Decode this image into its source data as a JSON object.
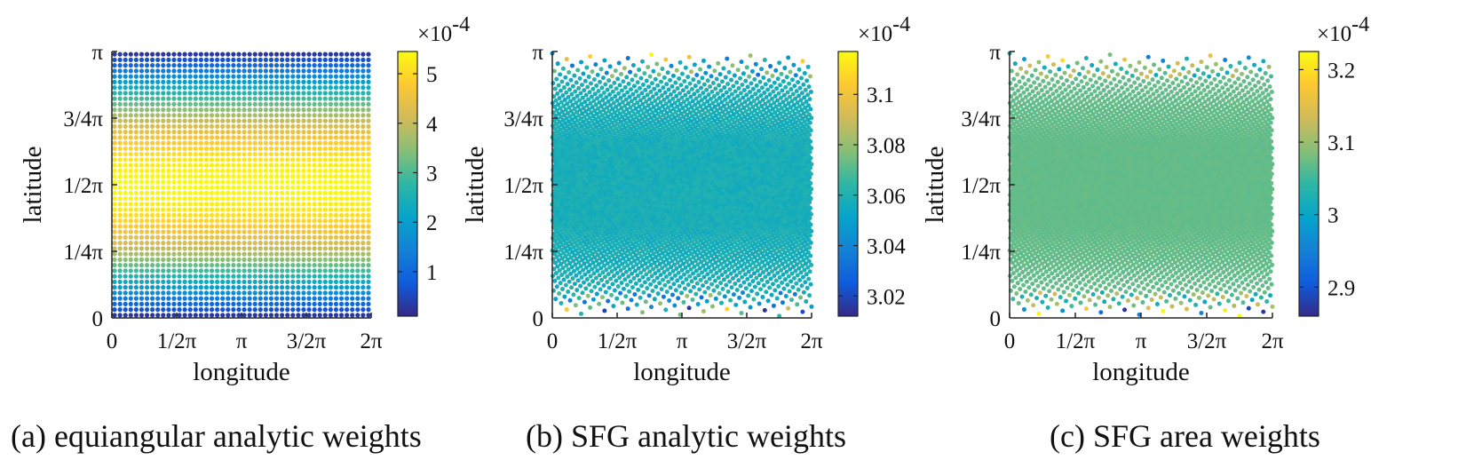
{
  "figure": {
    "caption_a": "(a) equiangular analytic weights",
    "caption_b": "(b) SFG  analytic weights",
    "caption_c": "(c) SFG area weights"
  },
  "chart_data": [
    {
      "type": "scatter",
      "title": "(a) equiangular analytic weights",
      "xlabel": "longitude",
      "ylabel": "latitude",
      "xlim": [
        0,
        6.2832
      ],
      "ylim": [
        0,
        3.1416
      ],
      "x_ticks": [
        0,
        1.5708,
        3.1416,
        4.7124,
        6.2832
      ],
      "x_tick_labels": [
        "0",
        "1/2π",
        "π",
        "3/2π",
        "2π"
      ],
      "y_ticks": [
        0,
        0.7854,
        1.5708,
        2.3562,
        3.1416
      ],
      "y_tick_labels": [
        "0",
        "1/4π",
        "1/2π",
        "3/4π",
        "π"
      ],
      "grid": "equiangular",
      "grid_size": [
        48,
        48
      ],
      "weight_model": "sin(latitude)",
      "colorbar": {
        "colormap": "parula",
        "range": [
          0.1,
          5.45
        ],
        "ticks": [
          1,
          2,
          3,
          4,
          5
        ],
        "tick_labels": [
          "1",
          "2",
          "3",
          "4",
          "5"
        ],
        "multiplier_base": "×10",
        "multiplier_exp": "-4"
      }
    },
    {
      "type": "scatter",
      "title": "(b) SFG  analytic weights",
      "xlabel": "longitude",
      "ylabel": "latitude",
      "xlim": [
        0,
        6.2832
      ],
      "ylim": [
        0,
        3.1416
      ],
      "x_ticks": [
        0,
        1.5708,
        3.1416,
        4.7124,
        6.2832
      ],
      "x_tick_labels": [
        "0",
        "1/2π",
        "π",
        "3/2π",
        "2π"
      ],
      "y_ticks": [
        0,
        0.7854,
        1.5708,
        2.3562,
        3.1416
      ],
      "y_tick_labels": [
        "0",
        "1/4π",
        "1/2π",
        "3/4π",
        "π"
      ],
      "grid": "spherical-fibonacci",
      "n_points": 4200,
      "weight_model": "3.058 near interior, noisy near poles",
      "colorbar": {
        "colormap": "parula",
        "range": [
          3.012,
          3.117
        ],
        "ticks": [
          3.02,
          3.04,
          3.06,
          3.08,
          3.1
        ],
        "tick_labels": [
          "3.02",
          "3.04",
          "3.06",
          "3.08",
          "3.1"
        ],
        "multiplier_base": "×10",
        "multiplier_exp": "-4"
      }
    },
    {
      "type": "scatter",
      "title": "(c) SFG area weights",
      "xlabel": "longitude",
      "ylabel": "latitude",
      "xlim": [
        0,
        6.2832
      ],
      "ylim": [
        0,
        3.1416
      ],
      "x_ticks": [
        0,
        1.5708,
        3.1416,
        4.7124,
        6.2832
      ],
      "x_tick_labels": [
        "0",
        "1/2π",
        "π",
        "3/2π",
        "2π"
      ],
      "y_ticks": [
        0,
        0.7854,
        1.5708,
        2.3562,
        3.1416
      ],
      "y_tick_labels": [
        "0",
        "1/4π",
        "1/2π",
        "3/4π",
        "π"
      ],
      "grid": "spherical-fibonacci",
      "n_points": 4200,
      "weight_model": "about 3.07 interior, noisy near poles",
      "colorbar": {
        "colormap": "parula",
        "range": [
          2.86,
          3.225
        ],
        "ticks": [
          2.9,
          3,
          3.1,
          3.2
        ],
        "tick_labels": [
          "2.9",
          "3",
          "3.1",
          "3.2"
        ],
        "multiplier_base": "×10",
        "multiplier_exp": "-4"
      }
    }
  ]
}
